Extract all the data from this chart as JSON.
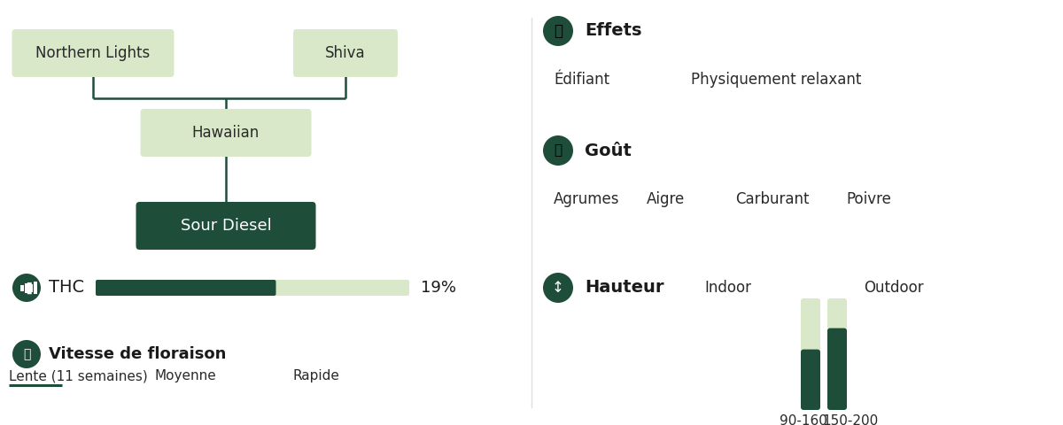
{
  "bg_color": "#ffffff",
  "dark_green": "#1e4d3a",
  "light_green_box": "#d8e8c8",
  "light_bar": "#d8e8c8",
  "line_color": "#1e4d3a",
  "thc_value": 0.57,
  "thc_label": "19%",
  "thc_text": "THC",
  "flowering_label": "Vitesse de floraison",
  "flowering_speed_labels": [
    "Lente (11 semaines)",
    "Moyenne",
    "Rapide"
  ],
  "effets_title": "Effets",
  "effets": [
    "Édifiant",
    "Physiquement relaxant"
  ],
  "gout_title": "Goût",
  "gout_items": [
    "Agrumes",
    "Aigre",
    "Carburant",
    "Poivre"
  ],
  "hauteur_title": "Hauteur",
  "hauteur_indoor_label": "Indoor",
  "hauteur_outdoor_label": "Outdoor",
  "hauteur_indoor_range": "90-160",
  "hauteur_outdoor_range": "150-200",
  "hauteur_indoor_fill": 0.52,
  "hauteur_outdoor_fill": 0.72,
  "nl_label": "Northern Lights",
  "sh_label": "Shiva",
  "hw_label": "Hawaiian",
  "sd_label": "Sour Diesel"
}
